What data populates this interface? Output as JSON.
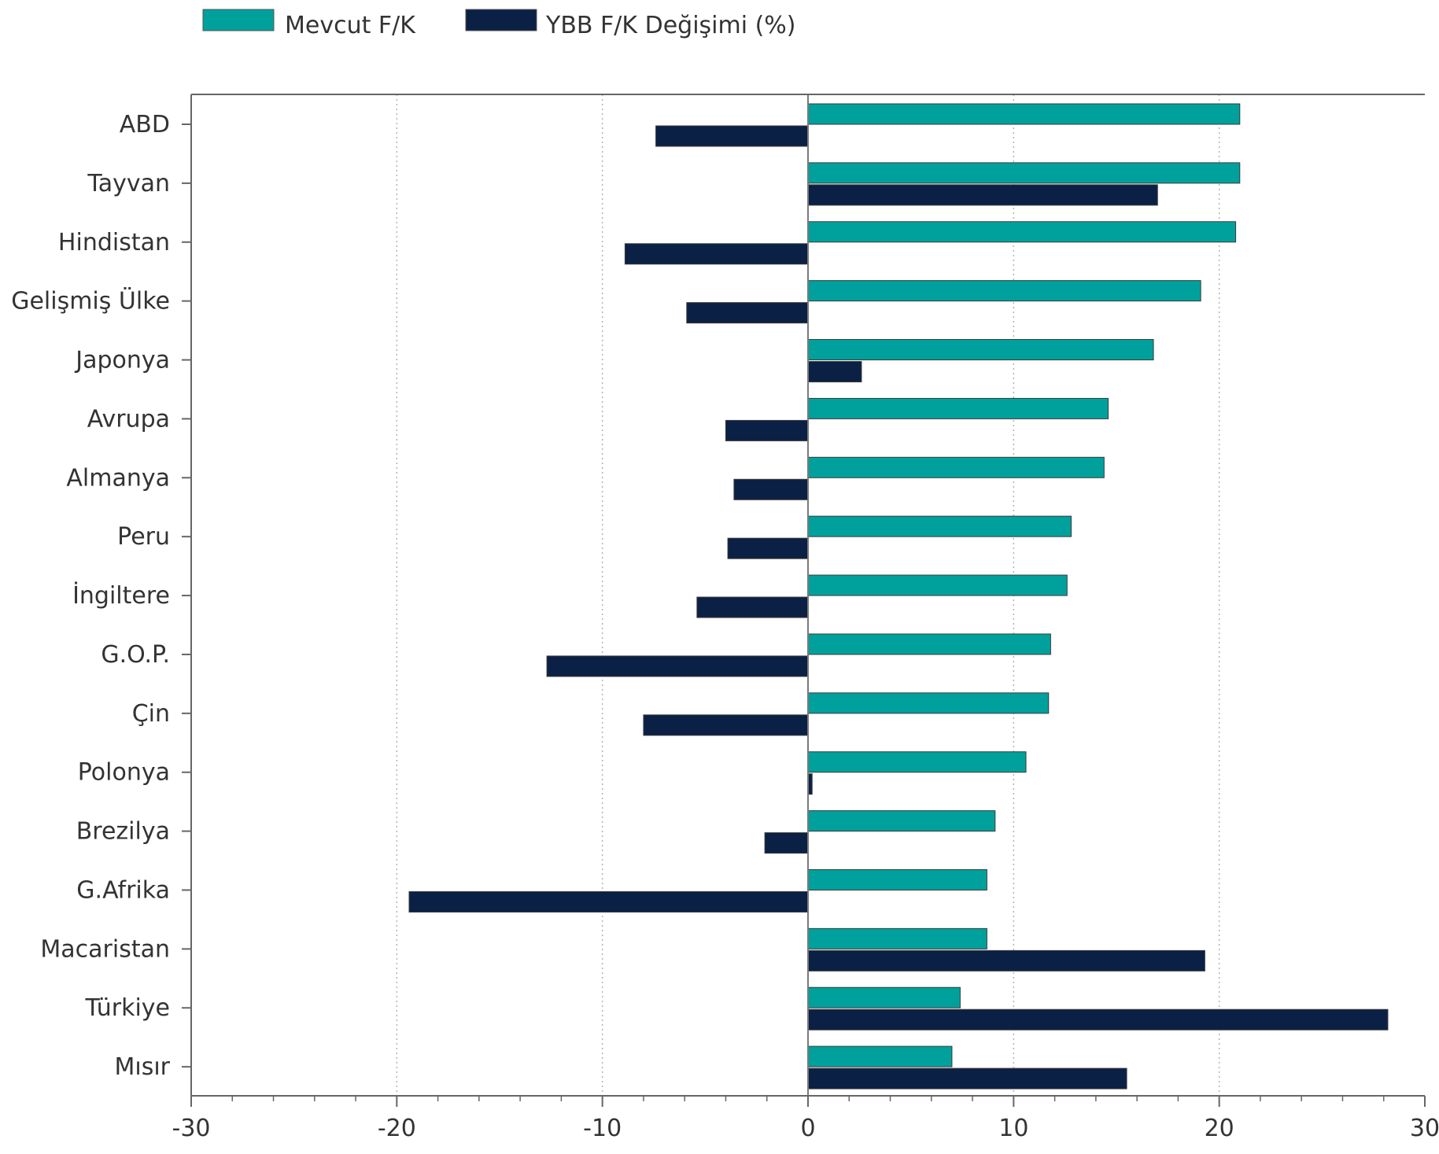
{
  "chart_data": {
    "type": "bar",
    "orientation": "horizontal",
    "categories": [
      "ABD",
      "Tayvan",
      "Hindistan",
      "Gelişmiş Ülke",
      "Japonya",
      "Avrupa",
      "Almanya",
      "Peru",
      "İngiltere",
      "G.O.P.",
      "Çin",
      "Polonya",
      "Brezilya",
      "G.Afrika",
      "Macaristan",
      "Türkiye",
      "Mısır"
    ],
    "series": [
      {
        "name": "Mevcut F/K",
        "color": "#00A19C",
        "values": [
          21.0,
          21.0,
          20.8,
          19.1,
          16.8,
          14.6,
          14.4,
          12.8,
          12.6,
          11.8,
          11.7,
          10.6,
          9.1,
          8.7,
          8.7,
          7.4,
          7.0
        ]
      },
      {
        "name": "YBB F/K Değişimi (%)",
        "color": "#0B2045",
        "values": [
          -7.4,
          17.0,
          -8.9,
          -5.9,
          2.6,
          -4.0,
          -3.6,
          -3.9,
          -5.4,
          -12.7,
          -8.0,
          0.2,
          -2.1,
          -19.4,
          19.3,
          28.2,
          15.5
        ]
      }
    ],
    "xlim": [
      -30,
      30
    ],
    "xticks": [
      "-30",
      "-20",
      "-10",
      "0",
      "10",
      "20",
      "30"
    ],
    "grid": "vertical-dotted",
    "legend_position": "top-left",
    "title": "",
    "xlabel": "",
    "ylabel": ""
  }
}
